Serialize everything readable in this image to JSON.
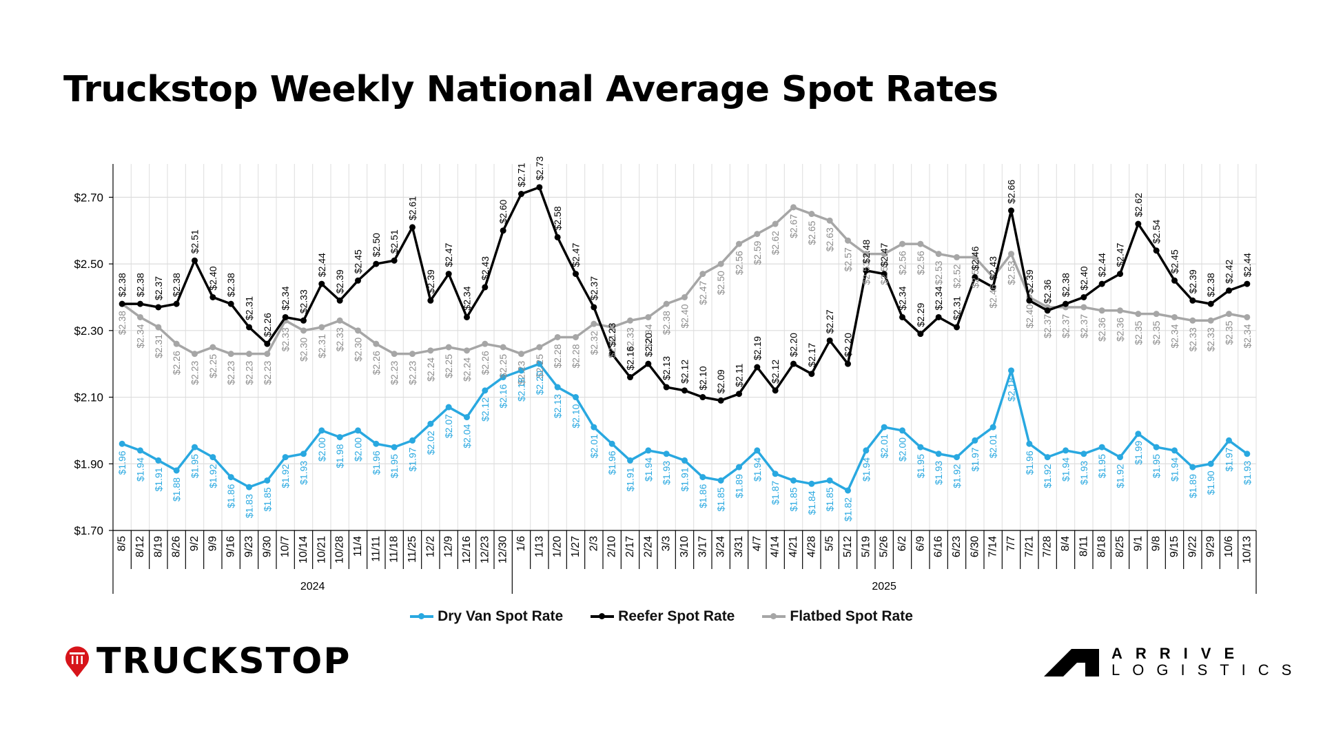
{
  "title": "Truckstop Weekly National Average Spot Rates",
  "logos": {
    "left": "TRUCKSTOP",
    "right_top": "ARRIVE",
    "right_bottom": "LOGISTICS"
  },
  "chart_data": {
    "type": "line",
    "title": "Truckstop Weekly National Average Spot Rates",
    "xlabel": "",
    "ylabel": "",
    "ylim": [
      1.7,
      2.8
    ],
    "yticks": [
      1.7,
      1.9,
      2.1,
      2.3,
      2.5,
      2.7
    ],
    "ytick_labels": [
      "$1.70",
      "$1.90",
      "$2.10",
      "$2.30",
      "$2.50",
      "$2.70"
    ],
    "grid": true,
    "legend_position": "bottom",
    "x": [
      "8/5",
      "8/12",
      "8/19",
      "8/26",
      "9/2",
      "9/9",
      "9/16",
      "9/23",
      "9/30",
      "10/7",
      "10/14",
      "10/21",
      "10/28",
      "11/4",
      "11/11",
      "11/18",
      "11/25",
      "12/2",
      "12/9",
      "12/16",
      "12/23",
      "12/30",
      "1/6",
      "1/13",
      "1/20",
      "1/27",
      "2/3",
      "2/10",
      "2/17",
      "2/24",
      "3/3",
      "3/10",
      "3/17",
      "3/24",
      "3/31",
      "4/7",
      "4/14",
      "4/21",
      "4/28",
      "5/5",
      "5/12",
      "5/19",
      "5/26",
      "6/2",
      "6/9",
      "6/16",
      "6/23",
      "6/30",
      "7/14",
      "7/7",
      "7/21",
      "7/28",
      "8/4",
      "8/11",
      "8/18",
      "8/25",
      "9/1",
      "9/8",
      "9/15",
      "9/22",
      "9/29",
      "10/6",
      "10/13"
    ],
    "year_groups": [
      {
        "label": "2024",
        "count": 22
      },
      {
        "label": "2025",
        "count": 41
      }
    ],
    "series": [
      {
        "name": "Dry Van Spot Rate",
        "color": "#29a8e0",
        "values": [
          1.96,
          1.94,
          1.91,
          1.88,
          1.95,
          1.92,
          1.86,
          1.83,
          1.85,
          1.92,
          1.93,
          2.0,
          1.98,
          2.0,
          1.96,
          1.95,
          1.97,
          2.02,
          2.07,
          2.04,
          2.12,
          2.16,
          2.18,
          2.2,
          2.13,
          2.1,
          2.01,
          1.96,
          1.91,
          1.94,
          1.93,
          1.91,
          1.86,
          1.85,
          1.89,
          1.94,
          1.87,
          1.85,
          1.84,
          1.85,
          1.82,
          1.94,
          2.01,
          2.0,
          1.95,
          1.93,
          1.92,
          1.97,
          2.01,
          2.18,
          1.96,
          1.92,
          1.94,
          1.93,
          1.95,
          1.92,
          1.99,
          1.95,
          1.94,
          1.89,
          1.9,
          1.97,
          1.93
        ]
      },
      {
        "name": "Reefer Spot Rate",
        "color": "#000000",
        "values": [
          2.38,
          2.38,
          2.37,
          2.38,
          2.51,
          2.4,
          2.38,
          2.31,
          2.26,
          2.34,
          2.33,
          2.44,
          2.39,
          2.45,
          2.5,
          2.51,
          2.61,
          2.39,
          2.47,
          2.34,
          2.43,
          2.6,
          2.71,
          2.73,
          2.58,
          2.47,
          2.37,
          2.23,
          2.16,
          2.2,
          2.13,
          2.12,
          2.1,
          2.09,
          2.11,
          2.19,
          2.12,
          2.2,
          2.17,
          2.27,
          2.2,
          2.48,
          2.47,
          2.34,
          2.29,
          2.34,
          2.31,
          2.46,
          2.43,
          2.66,
          2.39,
          2.36,
          2.38,
          2.4,
          2.44,
          2.47,
          2.62,
          2.54,
          2.45,
          2.39,
          2.38,
          2.42,
          2.44
        ]
      },
      {
        "name": "Flatbed Spot Rate",
        "color": "#a6a6a6",
        "values": [
          2.38,
          2.34,
          2.31,
          2.26,
          2.23,
          2.25,
          2.23,
          2.23,
          2.23,
          2.33,
          2.3,
          2.31,
          2.33,
          2.3,
          2.26,
          2.23,
          2.23,
          2.24,
          2.25,
          2.24,
          2.26,
          2.25,
          2.23,
          2.25,
          2.28,
          2.28,
          2.32,
          2.31,
          2.33,
          2.34,
          2.38,
          2.4,
          2.47,
          2.5,
          2.56,
          2.59,
          2.62,
          2.67,
          2.65,
          2.63,
          2.57,
          2.53,
          2.53,
          2.56,
          2.56,
          2.53,
          2.52,
          2.52,
          2.46,
          2.53,
          2.4,
          2.37,
          2.37,
          2.37,
          2.36,
          2.36,
          2.35,
          2.35,
          2.34,
          2.33,
          2.33,
          2.35,
          2.34
        ]
      }
    ]
  }
}
